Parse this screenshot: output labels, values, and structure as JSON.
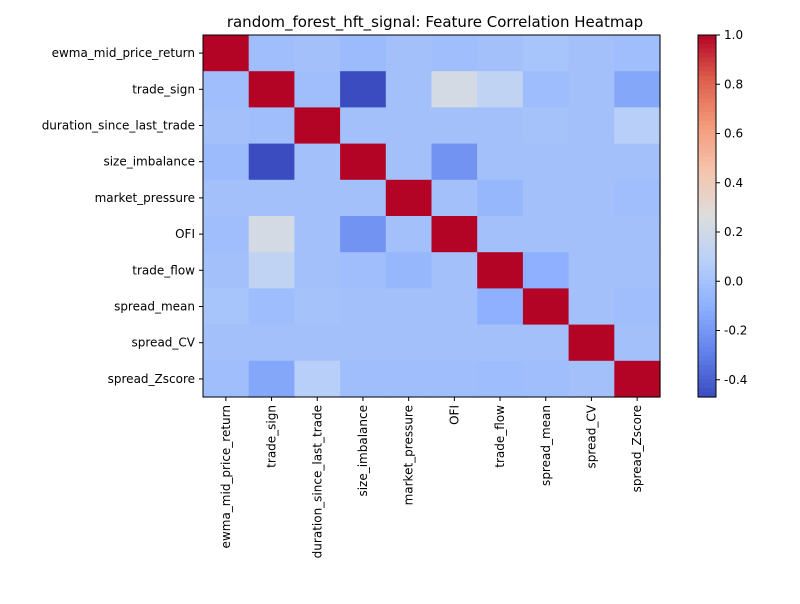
{
  "chart_data": {
    "type": "heatmap",
    "title": "random_forest_hft_signal: Feature Correlation Heatmap",
    "xlabel": "",
    "ylabel": "",
    "rows": [
      "ewma_mid_price_return",
      "trade_sign",
      "duration_since_last_trade",
      "size_imbalance",
      "market_pressure",
      "OFI",
      "trade_flow",
      "spread_mean",
      "spread_CV",
      "spread_Zscore"
    ],
    "columns": [
      "ewma_mid_price_return",
      "trade_sign",
      "duration_since_last_trade",
      "size_imbalance",
      "market_pressure",
      "OFI",
      "trade_flow",
      "spread_mean",
      "spread_CV",
      "spread_Zscore"
    ],
    "values": [
      [
        1.0,
        -0.02,
        -0.01,
        -0.04,
        -0.01,
        -0.02,
        -0.01,
        0.01,
        -0.01,
        -0.02
      ],
      [
        -0.02,
        1.0,
        -0.02,
        -0.47,
        -0.01,
        0.22,
        0.12,
        -0.03,
        -0.01,
        -0.14
      ],
      [
        -0.01,
        -0.02,
        1.0,
        -0.01,
        -0.01,
        -0.01,
        -0.01,
        0.0,
        -0.01,
        0.08
      ],
      [
        -0.04,
        -0.47,
        -0.01,
        1.0,
        -0.01,
        -0.22,
        -0.01,
        -0.01,
        -0.01,
        -0.01
      ],
      [
        -0.01,
        -0.01,
        -0.01,
        -0.01,
        1.0,
        -0.01,
        -0.06,
        -0.01,
        -0.01,
        -0.02
      ],
      [
        -0.02,
        0.22,
        -0.01,
        -0.22,
        -0.01,
        1.0,
        -0.01,
        -0.01,
        -0.01,
        -0.01
      ],
      [
        -0.01,
        0.12,
        -0.01,
        -0.02,
        -0.06,
        -0.01,
        1.0,
        -0.1,
        -0.01,
        -0.01
      ],
      [
        0.01,
        -0.03,
        0.0,
        -0.01,
        -0.01,
        -0.01,
        -0.1,
        1.0,
        -0.01,
        -0.02
      ],
      [
        -0.01,
        -0.01,
        -0.01,
        -0.01,
        -0.01,
        -0.01,
        -0.01,
        -0.01,
        1.0,
        -0.01
      ],
      [
        -0.02,
        -0.14,
        0.08,
        -0.02,
        -0.02,
        -0.02,
        -0.03,
        -0.02,
        -0.01,
        1.0
      ]
    ],
    "colormap": "coolwarm",
    "color_range": [
      -0.47,
      1.0
    ],
    "colorbar_ticks": [
      "-0.4",
      "-0.2",
      "0.0",
      "0.2",
      "0.4",
      "0.6",
      "0.8",
      "1.0"
    ],
    "colorbar_tick_values": [
      -0.4,
      -0.2,
      0.0,
      0.2,
      0.4,
      0.6,
      0.8,
      1.0
    ],
    "grid": false,
    "legend": "colorbar-right"
  }
}
